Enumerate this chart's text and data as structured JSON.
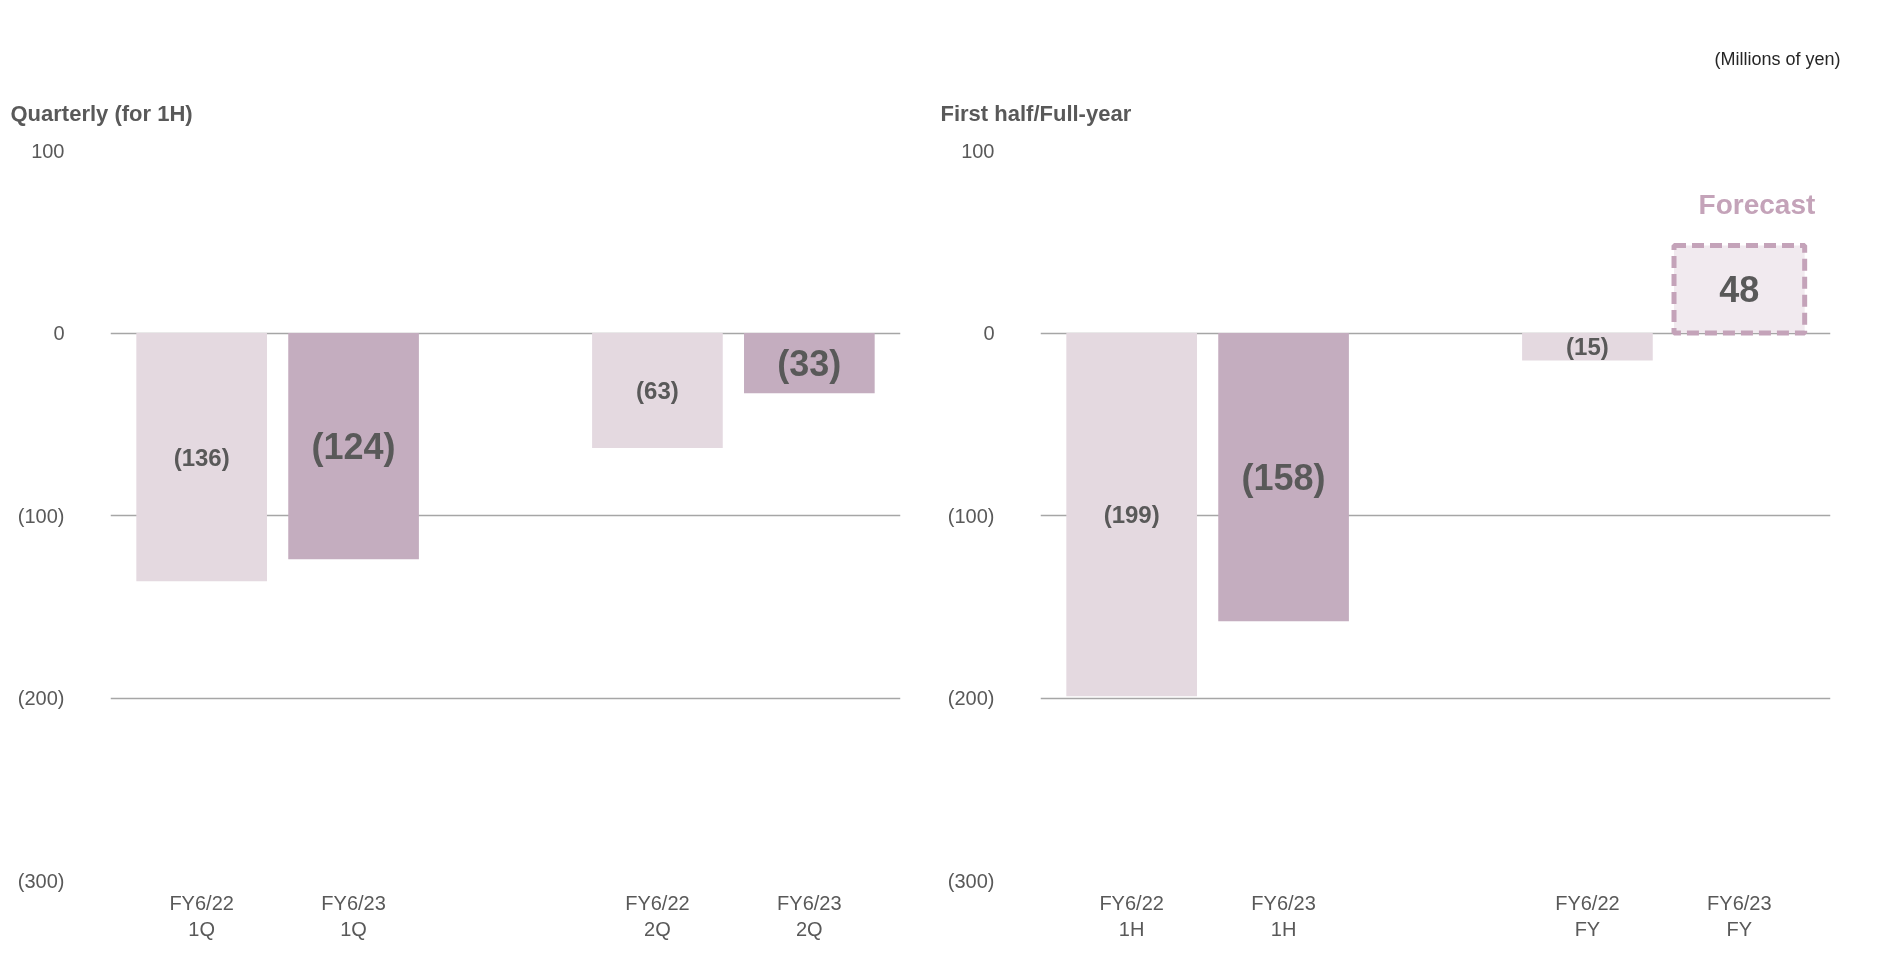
{
  "chart_data": [
    {
      "type": "bar",
      "title": "Quarterly (for 1H)",
      "categories": [
        "FY6/22\n1Q",
        "FY6/23\n1Q",
        null,
        "FY6/22\n2Q",
        "FY6/23\n2Q"
      ],
      "values": [
        -136,
        -124,
        null,
        -63,
        -33
      ],
      "colors": [
        "#e4d9e0",
        "#c4adbf",
        "#ffffff",
        "#e4d9e0",
        "#c4adbf"
      ],
      "value_labels": [
        "(136)",
        "(124)",
        null,
        "(63)",
        "(33)"
      ],
      "ylim": [
        -300,
        100
      ],
      "yticks": [
        {
          "value": -300,
          "label": "(300)"
        },
        {
          "value": -200,
          "label": "(200)"
        },
        {
          "value": -100,
          "label": "(100)"
        },
        0,
        100
      ],
      "grid": "y"
    },
    {
      "type": "bar",
      "title": "First half/Full-year",
      "categories": [
        "FY6/22\n1H",
        "FY6/23\n1H",
        null,
        "FY6/22\nFY",
        "FY6/23\nFY"
      ],
      "values": [
        -199,
        -158,
        null,
        -15,
        48
      ],
      "colors": [
        "#e4d9e0",
        "#c4adbf",
        "#ffffff",
        "#e4d9e0",
        "#f1eaef"
      ],
      "value_labels": [
        "(199)",
        "(158)",
        null,
        "(15)",
        "48"
      ],
      "annotations": [
        "(Millions of yen)",
        {
          "text": "Forecast",
          "x": "FY6/23\nFY",
          "y": 48
        }
      ],
      "ylim": [
        -300,
        100
      ],
      "yticks": [
        {
          "value": -300,
          "label": "(300)"
        },
        {
          "value": -200,
          "label": "(200)"
        },
        {
          "value": -100,
          "label": "(100)"
        },
        0,
        100
      ],
      "grid": "y"
    }
  ]
}
